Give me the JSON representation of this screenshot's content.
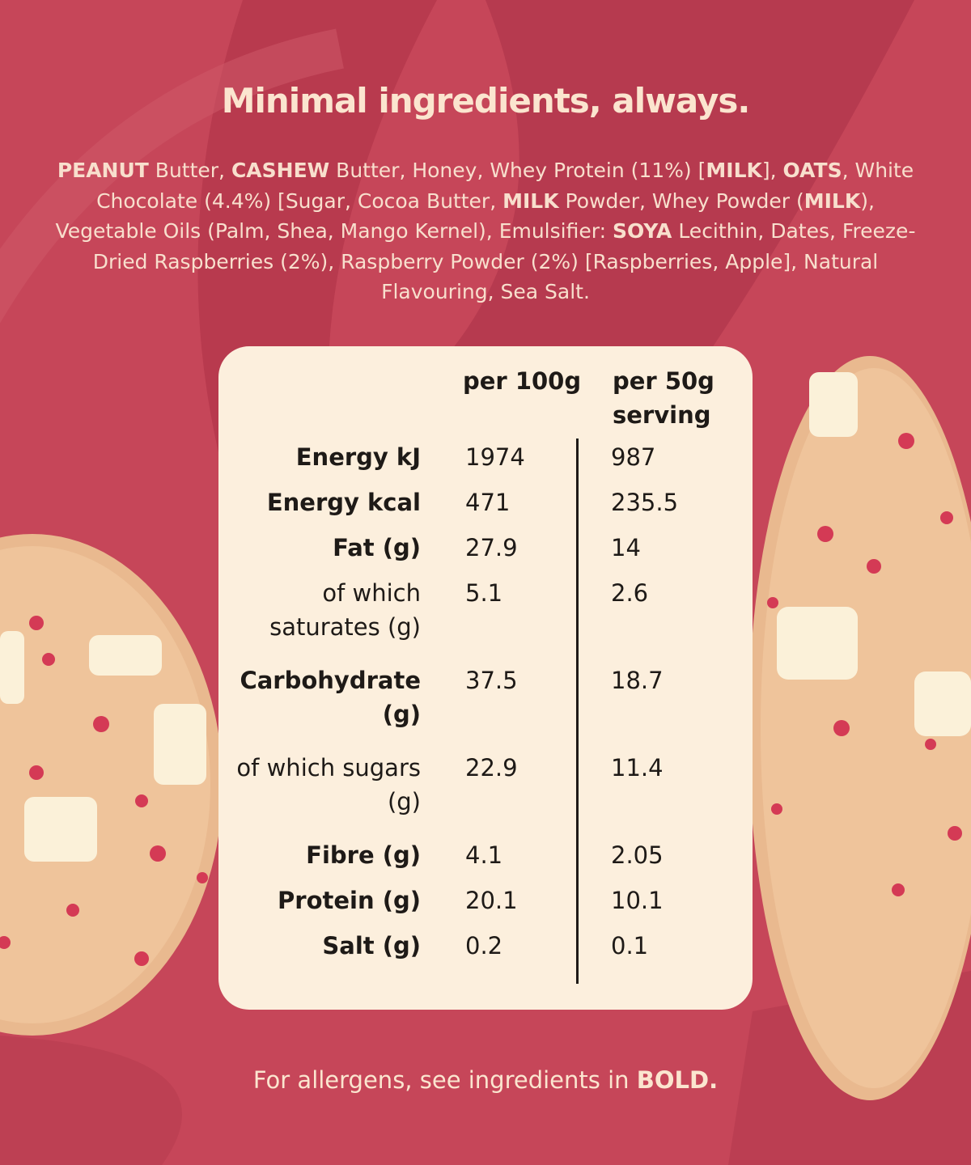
{
  "title": "Minimal ingredients, always.",
  "ingredients": {
    "segments": [
      {
        "text": "PEANUT",
        "bold": true
      },
      {
        "text": " Butter, ",
        "bold": false
      },
      {
        "text": "CASHEW",
        "bold": true
      },
      {
        "text": " Butter, Honey, Whey Protein (11%) [",
        "bold": false
      },
      {
        "text": "MILK",
        "bold": true
      },
      {
        "text": "], ",
        "bold": false
      },
      {
        "text": "OATS",
        "bold": true
      },
      {
        "text": ", White Chocolate (4.4%) [Sugar, Cocoa Butter, ",
        "bold": false
      },
      {
        "text": "MILK",
        "bold": true
      },
      {
        "text": " Powder, Whey Powder (",
        "bold": false
      },
      {
        "text": "MILK",
        "bold": true
      },
      {
        "text": "), Vegetable Oils (Palm, Shea, Mango Kernel), Emulsifier: ",
        "bold": false
      },
      {
        "text": "SOYA",
        "bold": true
      },
      {
        "text": " Lecithin, Dates, Freeze-Dried Raspberries (2%), Raspberry Powder (2%) [Raspberries, Apple], Natural Flavouring, Sea Salt.",
        "bold": false
      }
    ]
  },
  "table": {
    "header": {
      "per_100g": "per 100g",
      "per_serving": "per 50g serving"
    },
    "rows": [
      {
        "label": "Energy kJ",
        "bold": true,
        "per_100g": 1974,
        "per_serving": 987
      },
      {
        "label": "Energy kcal",
        "bold": true,
        "per_100g": 471,
        "per_serving": 235.5
      },
      {
        "label": "Fat (g)",
        "bold": true,
        "per_100g": 27.9,
        "per_serving": 14
      },
      {
        "label": "of which saturates (g)",
        "bold": false,
        "per_100g": 5.1,
        "per_serving": 2.6
      },
      {
        "label": "Carbohydrate (g)",
        "bold": true,
        "per_100g": 37.5,
        "per_serving": 18.7
      },
      {
        "label": "of which sugars (g)",
        "bold": false,
        "per_100g": 22.9,
        "per_serving": 11.4
      },
      {
        "label": "Fibre (g)",
        "bold": true,
        "per_100g": 4.1,
        "per_serving": 2.05
      },
      {
        "label": "Protein (g)",
        "bold": true,
        "per_100g": 20.1,
        "per_serving": 10.1
      },
      {
        "label": "Salt (g)",
        "bold": true,
        "per_100g": 0.2,
        "per_serving": 0.1
      }
    ]
  },
  "footer": {
    "segments": [
      {
        "text": "For allergens, see ingredients in ",
        "bold": false
      },
      {
        "text": "BOLD.",
        "bold": true
      }
    ]
  }
}
